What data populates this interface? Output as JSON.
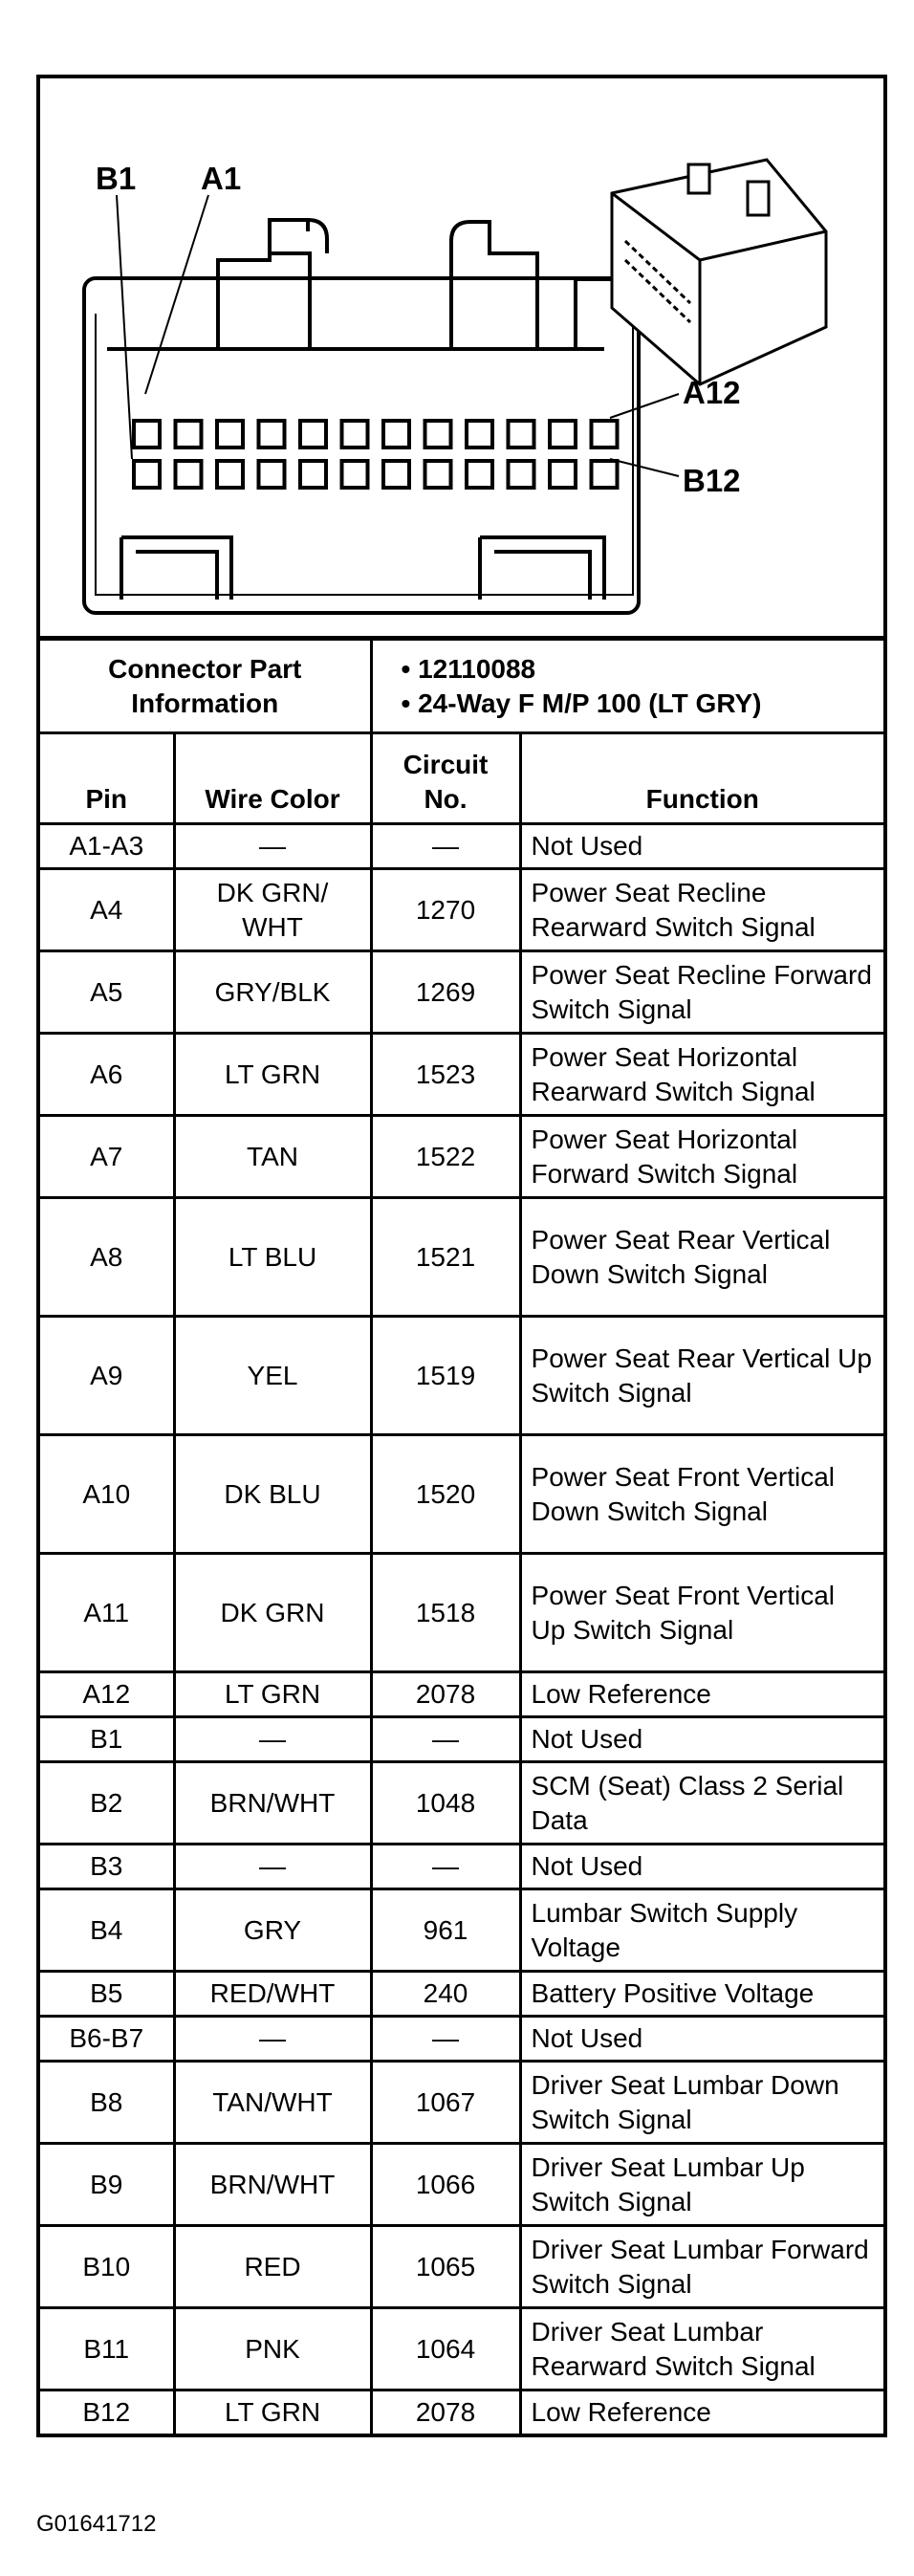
{
  "diagram": {
    "labels": {
      "b1": "B1",
      "a1": "A1",
      "a12": "A12",
      "b12": "B12"
    }
  },
  "connector_info": {
    "label": "Connector Part Information",
    "items": [
      "• 12110088",
      "• 24-Way F M/P 100 (LT GRY)"
    ]
  },
  "headers": {
    "pin": "Pin",
    "wire_color": "Wire Color",
    "circuit": "Circuit No.",
    "function": "Function"
  },
  "rows": [
    {
      "pin": "A1-A3",
      "color": "—",
      "circuit": "—",
      "function": "Not Used"
    },
    {
      "pin": "A4",
      "color": "DK GRN/ WHT",
      "circuit": "1270",
      "function": "Power Seat Recline Rearward Switch Signal"
    },
    {
      "pin": "A5",
      "color": "GRY/BLK",
      "circuit": "1269",
      "function": "Power Seat Recline Forward Switch Signal"
    },
    {
      "pin": "A6",
      "color": "LT GRN",
      "circuit": "1523",
      "function": "Power Seat Horizontal Rearward Switch Signal"
    },
    {
      "pin": "A7",
      "color": "TAN",
      "circuit": "1522",
      "function": "Power Seat Horizontal Forward Switch Signal"
    },
    {
      "pin": "A8",
      "color": "LT BLU",
      "circuit": "1521",
      "function": "Power Seat Rear Vertical Down Switch Signal"
    },
    {
      "pin": "A9",
      "color": "YEL",
      "circuit": "1519",
      "function": "Power Seat Rear Vertical Up Switch Signal"
    },
    {
      "pin": "A10",
      "color": "DK BLU",
      "circuit": "1520",
      "function": "Power Seat Front Vertical Down Switch Signal"
    },
    {
      "pin": "A11",
      "color": "DK GRN",
      "circuit": "1518",
      "function": "Power Seat Front Vertical Up Switch Signal"
    },
    {
      "pin": "A12",
      "color": "LT GRN",
      "circuit": "2078",
      "function": "Low Reference"
    },
    {
      "pin": "B1",
      "color": "—",
      "circuit": "—",
      "function": "Not Used"
    },
    {
      "pin": "B2",
      "color": "BRN/WHT",
      "circuit": "1048",
      "function": "SCM (Seat) Class 2 Serial Data"
    },
    {
      "pin": "B3",
      "color": "—",
      "circuit": "—",
      "function": "Not Used"
    },
    {
      "pin": "B4",
      "color": "GRY",
      "circuit": "961",
      "function": "Lumbar Switch Supply Voltage"
    },
    {
      "pin": "B5",
      "color": "RED/WHT",
      "circuit": "240",
      "function": "Battery Positive Voltage"
    },
    {
      "pin": "B6-B7",
      "color": "—",
      "circuit": "—",
      "function": "Not Used"
    },
    {
      "pin": "B8",
      "color": "TAN/WHT",
      "circuit": "1067",
      "function": "Driver Seat Lumbar Down Switch Signal"
    },
    {
      "pin": "B9",
      "color": "BRN/WHT",
      "circuit": "1066",
      "function": "Driver Seat Lumbar Up Switch Signal"
    },
    {
      "pin": "B10",
      "color": "RED",
      "circuit": "1065",
      "function": "Driver Seat Lumbar Forward Switch Signal"
    },
    {
      "pin": "B11",
      "color": "PNK",
      "circuit": "1064",
      "function": "Driver Seat Lumbar Rearward Switch Signal"
    },
    {
      "pin": "B12",
      "color": "LT GRN",
      "circuit": "2078",
      "function": "Low Reference"
    }
  ],
  "footer": "G01641712"
}
